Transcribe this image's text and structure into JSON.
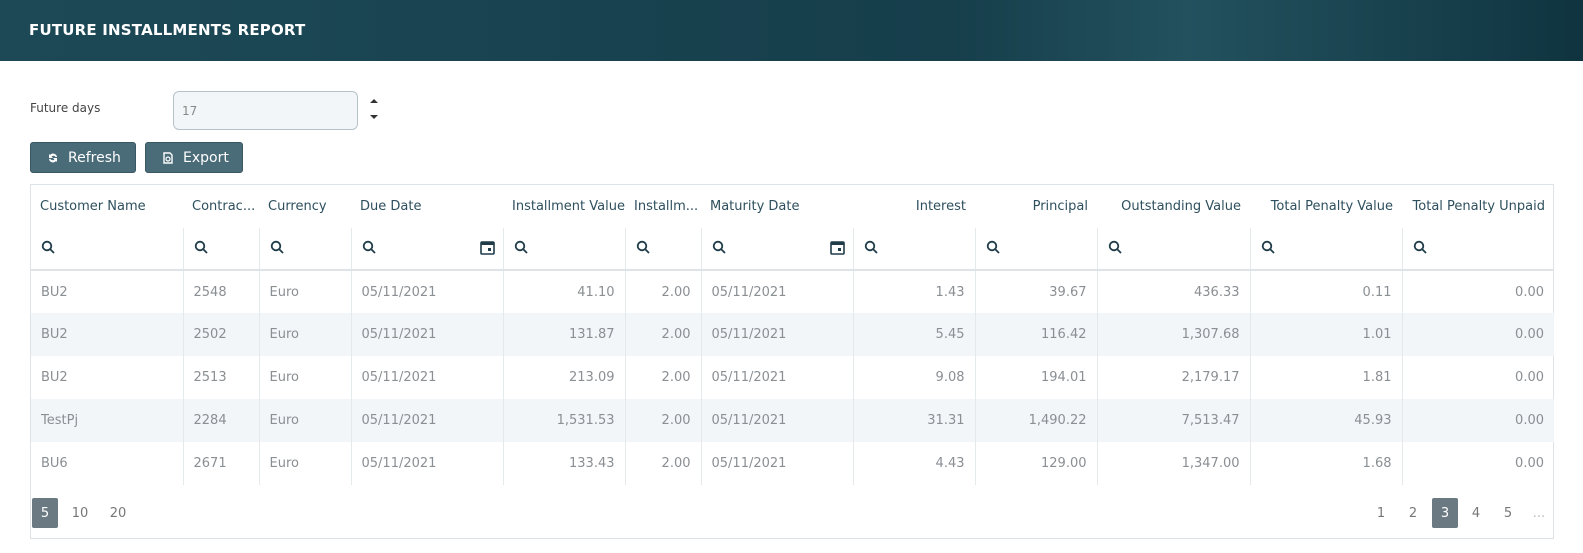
{
  "header": {
    "title": "FUTURE INSTALLMENTS REPORT"
  },
  "form": {
    "label": "Future days",
    "value": "17"
  },
  "buttons": [
    "Refresh",
    "Export"
  ],
  "table": {
    "columns": [
      "Customer Name",
      "Contrac...",
      "Currency",
      "Due Date",
      "Installment Value",
      "Installm...",
      "Maturity Date",
      "Interest",
      "Principal",
      "Outstanding Value",
      "Total Penalty Value",
      "Total Penalty Unpaid"
    ],
    "rows": [
      [
        "BU2",
        "2548",
        "Euro",
        "05/11/2021",
        "41.10",
        "2.00",
        "05/11/2021",
        "1.43",
        "39.67",
        "436.33",
        "0.11",
        "0.00"
      ],
      [
        "BU2",
        "2502",
        "Euro",
        "05/11/2021",
        "131.87",
        "2.00",
        "05/11/2021",
        "5.45",
        "116.42",
        "1,307.68",
        "1.01",
        "0.00"
      ],
      [
        "BU2",
        "2513",
        "Euro",
        "05/11/2021",
        "213.09",
        "2.00",
        "05/11/2021",
        "9.08",
        "194.01",
        "2,179.17",
        "1.81",
        "0.00"
      ],
      [
        "TestPj",
        "2284",
        "Euro",
        "05/11/2021",
        "1,531.53",
        "2.00",
        "05/11/2021",
        "31.31",
        "1,490.22",
        "7,513.47",
        "45.93",
        "0.00"
      ],
      [
        "BU6",
        "2671",
        "Euro",
        "05/11/2021",
        "133.43",
        "2.00",
        "05/11/2021",
        "4.43",
        "129.00",
        "1,347.00",
        "1.68",
        "0.00"
      ]
    ]
  },
  "pagination": {
    "page_sizes": [
      "5",
      "10",
      "20"
    ],
    "pages": [
      "1",
      "2",
      "3",
      "4",
      "5",
      "..."
    ]
  }
}
